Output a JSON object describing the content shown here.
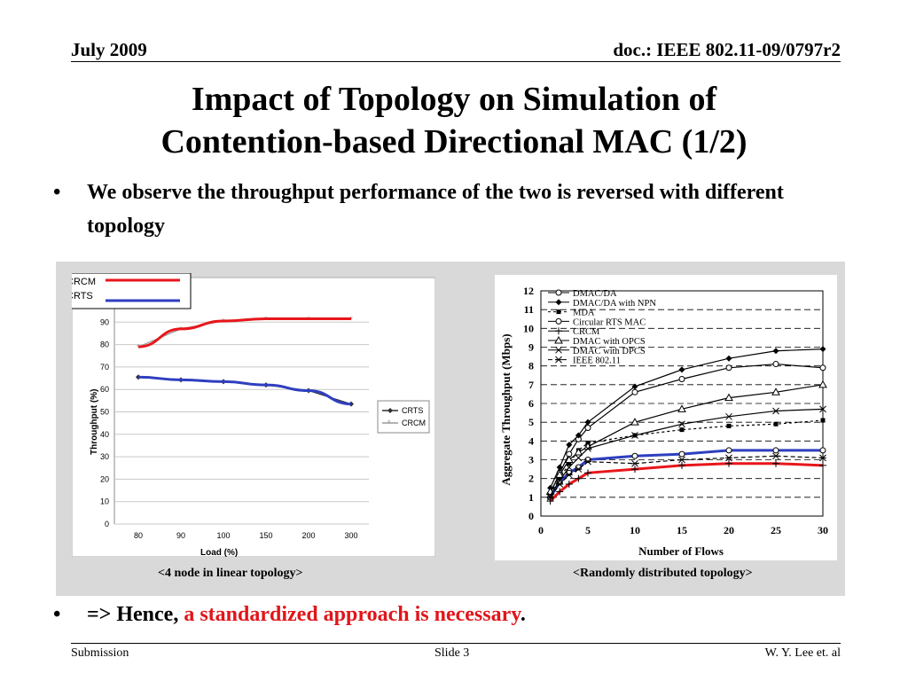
{
  "header": {
    "date": "July 2009",
    "doc": "doc.: IEEE 802.11-09/0797r2"
  },
  "title_line1": "Impact of Topology on Simulation of",
  "title_line2": "Contention-based Directional MAC (1/2)",
  "bullets": {
    "b1": "We observe the throughput performance of the two is reversed with different topology",
    "b2_prefix": "=> Hence, ",
    "b2_highlight": "a standardized approach is necessary",
    "b2_suffix": "."
  },
  "captions": {
    "left": "<4 node in linear topology>",
    "right": "<Randomly distributed topology>"
  },
  "footer": {
    "left": "Submission",
    "mid": "Slide 3",
    "right": "W. Y. Lee et. al"
  },
  "colors": {
    "highlight": "#e0161b",
    "crcm_overlay": "#e8161b",
    "crts_overlay": "#2e3fbf"
  },
  "overlay_legend": [
    "CRCM",
    "CRTS"
  ],
  "chart_data": [
    {
      "type": "line",
      "xlabel": "Load (%)",
      "ylabel": "Throughput (%)",
      "categories": [
        "80",
        "90",
        "100",
        "150",
        "200",
        "300"
      ],
      "ylim": [
        0,
        100
      ],
      "yticks": [
        0,
        10,
        20,
        30,
        40,
        50,
        60,
        70,
        80,
        90
      ],
      "grid": true,
      "legend_position": "right",
      "series": [
        {
          "name": "CRTS",
          "values": [
            65.5,
            64.3,
            63.5,
            62,
            59.5,
            53.5
          ]
        },
        {
          "name": "CRCM",
          "values": [
            79,
            87,
            90.5,
            91.5,
            91.5,
            91.5
          ]
        }
      ]
    },
    {
      "type": "line",
      "xlabel": "Number of Flows",
      "ylabel": "Aggregate Throughput (Mbps)",
      "xticks": [
        0,
        5,
        10,
        15,
        20,
        25,
        30
      ],
      "yticks": [
        0,
        1,
        2,
        3,
        4,
        5,
        6,
        7,
        8,
        9,
        10,
        11,
        12
      ],
      "xlim": [
        0,
        30
      ],
      "ylim": [
        0,
        12
      ],
      "legend_position": "top-left",
      "x": [
        1,
        2,
        3,
        4,
        5,
        10,
        15,
        20,
        25,
        30
      ],
      "series": [
        {
          "name": "DMAC/DA",
          "values": [
            1.2,
            2.3,
            3.3,
            4.1,
            4.7,
            6.6,
            7.3,
            7.9,
            8.1,
            7.9
          ]
        },
        {
          "name": "DMAC/DA with NPN",
          "values": [
            1.5,
            2.6,
            3.8,
            4.3,
            5.0,
            6.9,
            7.8,
            8.4,
            8.8,
            8.9
          ]
        },
        {
          "name": "MDA",
          "values": [
            1.2,
            2.0,
            2.8,
            3.5,
            3.9,
            4.3,
            4.6,
            4.8,
            4.9,
            5.1
          ]
        },
        {
          "name": "Circular RTS MAC",
          "values": [
            1.0,
            1.8,
            2.3,
            2.6,
            3.0,
            3.2,
            3.3,
            3.5,
            3.5,
            3.5
          ]
        },
        {
          "name": "CRCM",
          "values": [
            0.8,
            1.3,
            1.7,
            2.0,
            2.3,
            2.5,
            2.7,
            2.8,
            2.8,
            2.7
          ]
        },
        {
          "name": "DMAC with OPCS",
          "values": [
            1.3,
            2.2,
            3.0,
            3.4,
            3.7,
            5.0,
            5.7,
            6.3,
            6.6,
            7.0
          ]
        },
        {
          "name": "DMAC with DPCS",
          "values": [
            1.1,
            1.9,
            2.6,
            3.1,
            3.6,
            4.3,
            4.9,
            5.3,
            5.6,
            5.7
          ]
        },
        {
          "name": "IEEE 802.11",
          "values": [
            1.0,
            1.7,
            2.2,
            2.5,
            2.9,
            2.8,
            3.0,
            3.1,
            3.2,
            3.1
          ]
        }
      ]
    }
  ]
}
